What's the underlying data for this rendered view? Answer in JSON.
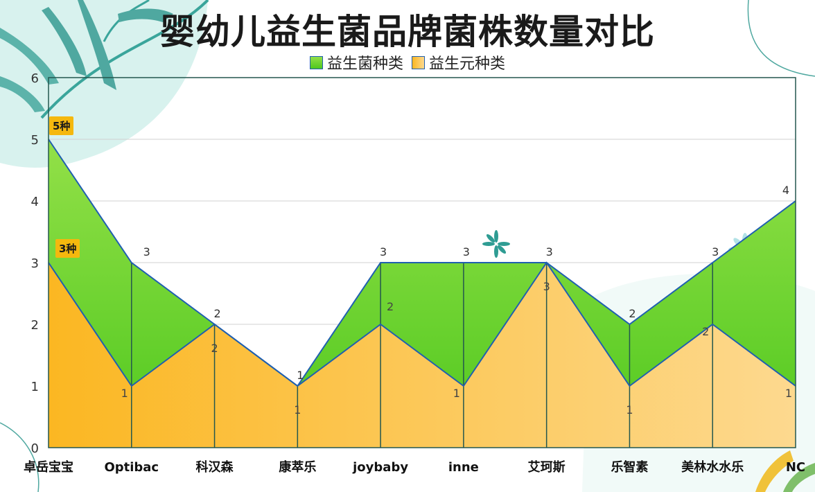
{
  "title": "婴幼儿益生菌品牌菌株数量对比",
  "legend": {
    "probiotic": "益生菌种类",
    "prebiotic": "益生元种类"
  },
  "callouts": {
    "first_probiotic": "5种",
    "first_prebiotic": "3种"
  },
  "colors": {
    "probiotic_top": "#93e048",
    "probiotic_bottom": "#4fc81e",
    "prebiotic_left": "#fbb722",
    "prebiotic_right": "#fdd98f",
    "line": "#1f5fb0",
    "plot_border": "#23574f",
    "callout_bg": "#f5b80e"
  },
  "chart_data": {
    "type": "area",
    "categories": [
      "卓岳宝宝",
      "Optibac",
      "科汉森",
      "康萃乐",
      "joybaby",
      "inne",
      "艾珂斯",
      "乐智素",
      "美林水水乐",
      "NC"
    ],
    "series": [
      {
        "name": "益生菌种类",
        "values": [
          5,
          3,
          2,
          1,
          3,
          3,
          3,
          2,
          3,
          4
        ]
      },
      {
        "name": "益生元种类",
        "values": [
          3,
          1,
          2,
          1,
          2,
          1,
          3,
          1,
          2,
          1
        ]
      }
    ],
    "y_ticks": [
      "0",
      "1",
      "2",
      "3",
      "4",
      "5",
      "6"
    ],
    "ylim": [
      0,
      6
    ],
    "grid": true,
    "legend_position": "top"
  }
}
